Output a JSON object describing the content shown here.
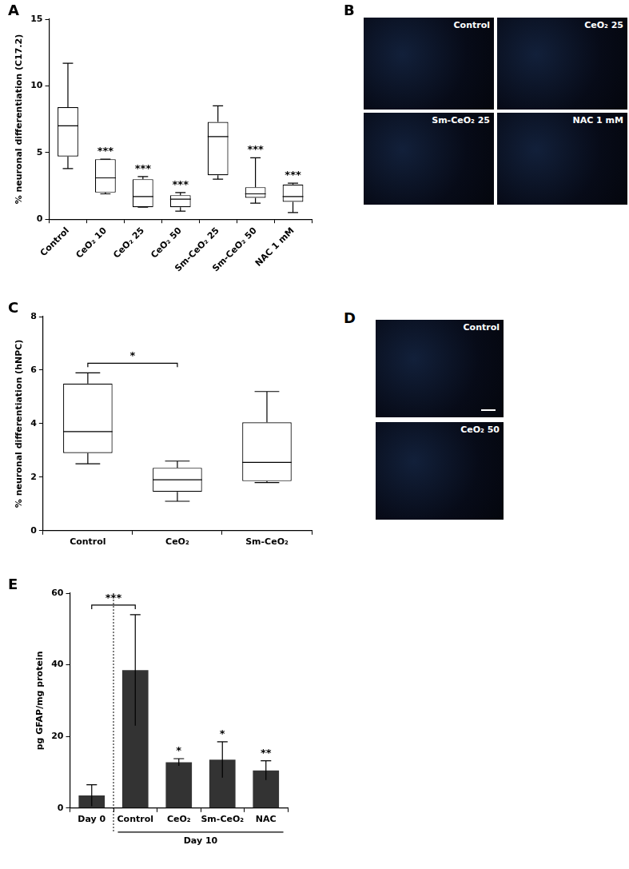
{
  "chart_data": [
    {
      "panel": "A",
      "type": "box",
      "y_label": "% neuronal differentiation (C17.2)",
      "categories": [
        "Control",
        "CeO₂ 10",
        "CeO₂ 25",
        "CeO₂ 50",
        "Sm-CeO₂ 25",
        "Sm-CeO₂ 50",
        "NAC 1 mM"
      ],
      "boxes": [
        {
          "min": 3.8,
          "q1": 4.7,
          "median": 7.0,
          "q3": 8.4,
          "max": 11.7
        },
        {
          "min": 1.9,
          "q1": 2.0,
          "median": 3.1,
          "q3": 4.5,
          "max": 4.5
        },
        {
          "min": 0.9,
          "q1": 0.9,
          "median": 1.7,
          "q3": 3.0,
          "max": 3.2
        },
        {
          "min": 0.6,
          "q1": 0.9,
          "median": 1.5,
          "q3": 1.8,
          "max": 2.0
        },
        {
          "min": 3.0,
          "q1": 3.3,
          "median": 6.2,
          "q3": 7.3,
          "max": 8.5
        },
        {
          "min": 1.2,
          "q1": 1.6,
          "median": 1.9,
          "q3": 2.4,
          "max": 4.6
        },
        {
          "min": 0.5,
          "q1": 1.3,
          "median": 1.7,
          "q3": 2.6,
          "max": 2.7
        }
      ],
      "annotations": [
        {
          "text": "***",
          "category": "CeO₂ 10"
        },
        {
          "text": "***",
          "category": "CeO₂ 25"
        },
        {
          "text": "***",
          "category": "CeO₂ 50"
        },
        {
          "text": "***",
          "category": "Sm-CeO₂ 50"
        },
        {
          "text": "***",
          "category": "NAC 1 mM"
        }
      ],
      "ylim": [
        0,
        15
      ],
      "yticks": [
        0,
        5,
        10,
        15
      ],
      "grid": false
    },
    {
      "panel": "C",
      "type": "box",
      "y_label": "% neuronal differentiation (hNPC)",
      "categories": [
        "Control",
        "CeO₂",
        "Sm-CeO₂"
      ],
      "boxes": [
        {
          "min": 2.5,
          "q1": 2.9,
          "median": 3.7,
          "q3": 5.5,
          "max": 5.9
        },
        {
          "min": 1.1,
          "q1": 1.45,
          "median": 1.9,
          "q3": 2.35,
          "max": 2.6
        },
        {
          "min": 1.8,
          "q1": 1.85,
          "median": 2.55,
          "q3": 4.05,
          "max": 5.2
        }
      ],
      "annotations": [
        {
          "text": "*",
          "from": "Control",
          "to": "CeO₂"
        }
      ],
      "ylim": [
        0,
        8
      ],
      "yticks": [
        0,
        2,
        4,
        6,
        8
      ],
      "grid": false
    },
    {
      "panel": "E",
      "type": "bar",
      "y_label": "pg GFAP/mg protein",
      "categories": [
        "Day 0",
        "Control",
        "CeO₂",
        "Sm-CeO₂",
        "NAC"
      ],
      "values": [
        3.5,
        38.5,
        12.8,
        13.5,
        10.5
      ],
      "errors": [
        3.0,
        15.5,
        1.0,
        5.0,
        2.7
      ],
      "color": "#333333",
      "annotations": [
        {
          "text": "***",
          "from": "Day 0",
          "to": "Control"
        },
        {
          "text": "*",
          "category": "CeO₂"
        },
        {
          "text": "*",
          "category": "Sm-CeO₂"
        },
        {
          "text": "**",
          "category": "NAC"
        }
      ],
      "group": {
        "label": "Day 10",
        "from": "Control",
        "to": "NAC"
      },
      "ylim": [
        0,
        60
      ],
      "yticks": [
        0,
        20,
        40,
        60
      ],
      "grid": false
    }
  ],
  "image_panels": [
    {
      "panel": "B",
      "labels": [
        "Control",
        "CeO₂ 25",
        "Sm-CeO₂ 25",
        "NAC 1 mM"
      ]
    },
    {
      "panel": "D",
      "labels": [
        "Control",
        "CeO₂ 50"
      ]
    }
  ]
}
